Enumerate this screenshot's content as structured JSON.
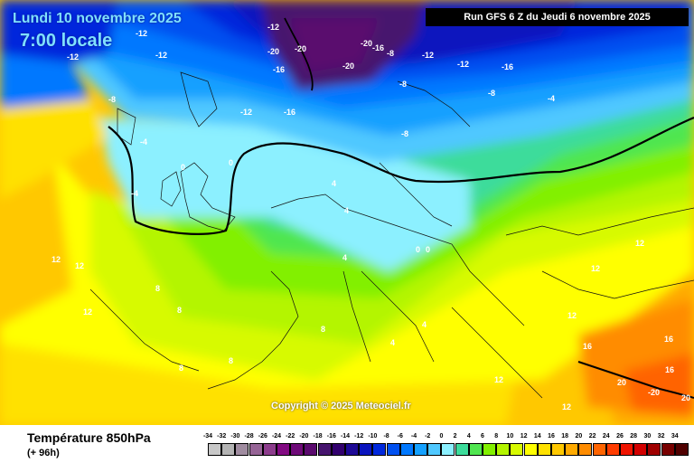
{
  "header": {
    "date": "Lundi 10 novembre 2025",
    "time": "7:00 locale",
    "run": "Run GFS 6 Z du Jeudi 6 novembre 2025"
  },
  "copyright": "Copyright © 2025 Meteociel.fr",
  "footer": {
    "title": "Température 850hPa",
    "subtitle": "(+ 96h)"
  },
  "scale": {
    "ticks": [
      "-34",
      "-32",
      "-30",
      "-28",
      "-26",
      "-24",
      "-22",
      "-20",
      "-18",
      "-16",
      "-14",
      "-12",
      "-10",
      "-8",
      "-6",
      "-4",
      "-2",
      "0",
      "2",
      "4",
      "6",
      "8",
      "10",
      "12",
      "14",
      "16",
      "18",
      "20",
      "22",
      "24",
      "26",
      "28",
      "30",
      "32",
      "34"
    ],
    "colors": [
      "#c8c8c8",
      "#b4b4b4",
      "#a08ca0",
      "#966496",
      "#8c3c8c",
      "#820a82",
      "#6e0a78",
      "#5a0a6e",
      "#46146e",
      "#32006e",
      "#1e0a96",
      "#0a14be",
      "#0028dc",
      "#0050f0",
      "#0078ff",
      "#14a0ff",
      "#50c8ff",
      "#8cf0ff",
      "#3cdc9b",
      "#50e650",
      "#82f000",
      "#b4f500",
      "#d7fa00",
      "#ffff00",
      "#ffe100",
      "#ffc800",
      "#ffaa00",
      "#ff8c00",
      "#ff6400",
      "#ff3c00",
      "#f01400",
      "#d20000",
      "#a00000",
      "#780000",
      "#500000"
    ]
  },
  "map_labels": [
    {
      "t": "-12"
    },
    {
      "t": "-12"
    },
    {
      "t": "-12"
    },
    {
      "t": "-12"
    },
    {
      "t": "-20"
    },
    {
      "t": "-20"
    },
    {
      "t": "-16"
    },
    {
      "t": "-20"
    },
    {
      "t": "-20"
    },
    {
      "t": "-16"
    },
    {
      "t": "-8"
    },
    {
      "t": "-12"
    },
    {
      "t": "-12"
    },
    {
      "t": "-16"
    },
    {
      "t": "-8"
    },
    {
      "t": "-8"
    },
    {
      "t": "-4"
    },
    {
      "t": "-8"
    },
    {
      "t": "-12"
    },
    {
      "t": "-16"
    },
    {
      "t": "-8"
    },
    {
      "t": "-4"
    },
    {
      "t": "-4"
    },
    {
      "t": "0"
    },
    {
      "t": "0"
    },
    {
      "t": "4"
    },
    {
      "t": "4"
    },
    {
      "t": "4"
    },
    {
      "t": "0"
    },
    {
      "t": "0"
    },
    {
      "t": "12"
    },
    {
      "t": "12"
    },
    {
      "t": "12"
    },
    {
      "t": "8"
    },
    {
      "t": "8"
    },
    {
      "t": "8"
    },
    {
      "t": "8"
    },
    {
      "t": "12"
    },
    {
      "t": "12"
    },
    {
      "t": "12"
    },
    {
      "t": "16"
    },
    {
      "t": "16"
    },
    {
      "t": "16"
    },
    {
      "t": "20"
    },
    {
      "t": "-20"
    },
    {
      "t": "20"
    },
    {
      "t": "8"
    },
    {
      "t": "4"
    },
    {
      "t": "4"
    },
    {
      "t": "12"
    },
    {
      "t": "12"
    }
  ]
}
